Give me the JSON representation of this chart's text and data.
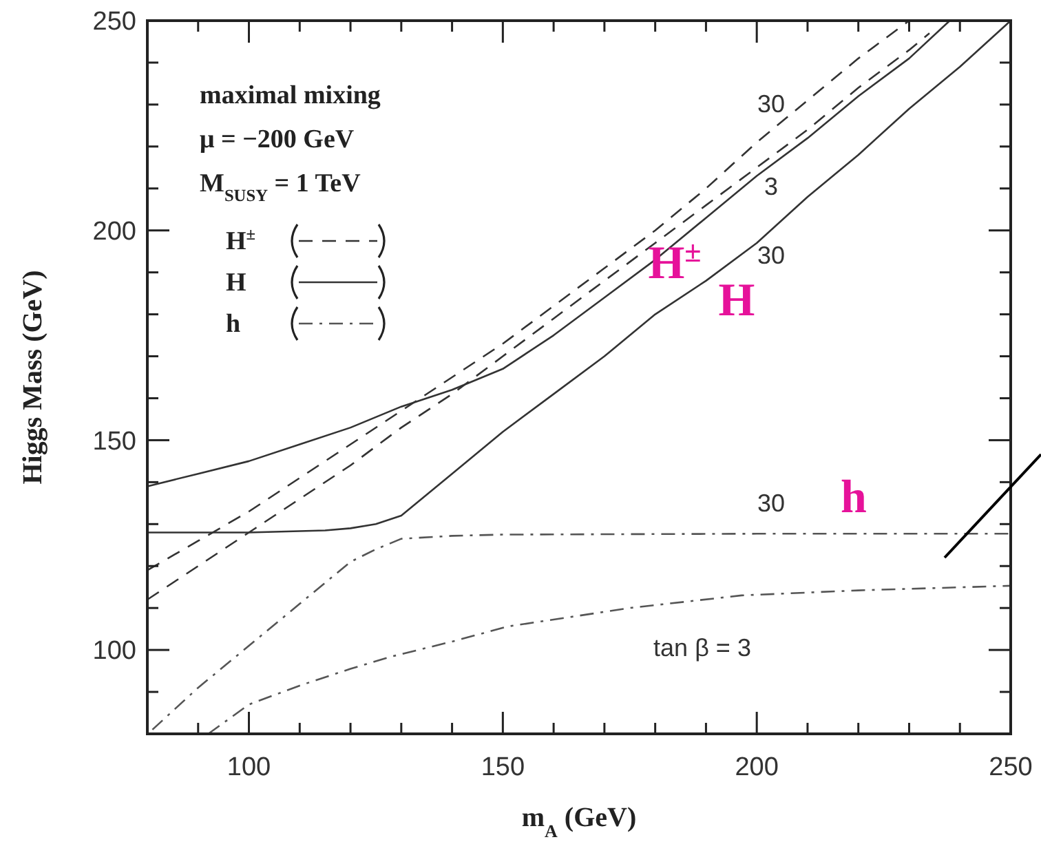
{
  "chart_data": {
    "type": "line",
    "xlabel": "m$_{A}$ (GeV)",
    "ylabel": "Higgs Mass (GeV)",
    "xlim": [
      80,
      250
    ],
    "ylim": [
      80,
      250
    ],
    "xticks": [
      {
        "value": 90,
        "label": null
      },
      100,
      {
        "value": 110,
        "label": null
      },
      {
        "value": 120,
        "label": null
      },
      {
        "value": 130,
        "label": null
      },
      {
        "value": 140,
        "label": null
      },
      150,
      {
        "value": 160,
        "label": null
      },
      {
        "value": 170,
        "label": null
      },
      {
        "value": 180,
        "label": null
      },
      {
        "value": 190,
        "label": null
      },
      200,
      {
        "value": 210,
        "label": null
      },
      {
        "value": 220,
        "label": null
      },
      {
        "value": 230,
        "label": null
      },
      {
        "value": 240,
        "label": null
      },
      250
    ],
    "yticks": [
      {
        "value": 90,
        "label": null
      },
      100,
      {
        "value": 110,
        "label": null
      },
      {
        "value": 120,
        "label": null
      },
      {
        "value": 130,
        "label": null
      },
      {
        "value": 140,
        "label": null
      },
      150,
      {
        "value": 160,
        "label": null
      },
      {
        "value": 170,
        "label": null
      },
      {
        "value": 180,
        "label": null
      },
      {
        "value": 190,
        "label": null
      },
      200,
      {
        "value": 210,
        "label": null
      },
      {
        "value": 220,
        "label": null
      },
      {
        "value": 230,
        "label": null
      },
      {
        "value": 240,
        "label": null
      },
      250
    ],
    "grid": false,
    "legend": "top left",
    "marker": "none",
    "series": [
      {
        "name": "H$^{±}$",
        "color": "#333333",
        "line_style": "dashed",
        "x": [
          80,
          90,
          100,
          110,
          120,
          130,
          140,
          150,
          160,
          170,
          180,
          190,
          200,
          210,
          220,
          230
        ],
        "values": [
          119,
          126,
          133,
          141,
          149,
          157,
          165,
          173,
          182,
          191,
          200,
          210,
          221,
          231,
          241,
          250
        ]
      },
      {
        "color": "#333333",
        "line_style": "dashed",
        "x": [
          80,
          90,
          100,
          110,
          120,
          130,
          140,
          150,
          160,
          170,
          180,
          190,
          200,
          210,
          220,
          230,
          234
        ],
        "values": [
          112,
          120,
          128,
          136,
          144,
          153,
          161,
          170,
          179,
          188,
          197,
          206,
          215,
          224,
          234,
          243,
          247
        ]
      },
      {
        "name": "H",
        "color": "#333333",
        "line_style": "solid",
        "x": [
          80,
          90,
          100,
          110,
          120,
          130,
          140,
          150,
          160,
          170,
          180,
          190,
          200,
          210,
          220,
          230,
          238
        ],
        "values": [
          139,
          142,
          145,
          149,
          153,
          158,
          162,
          167,
          175,
          184,
          193,
          203,
          213,
          222,
          232,
          241,
          250
        ]
      },
      {
        "color": "#333333",
        "line_style": "solid",
        "x": [
          80,
          100,
          115,
          120,
          125,
          130,
          140,
          150,
          160,
          170,
          180,
          190,
          200,
          210,
          220,
          230,
          240,
          250
        ],
        "values": [
          128,
          128,
          128.5,
          129,
          130,
          132,
          142,
          152,
          161,
          170,
          180,
          188,
          197,
          208,
          218,
          229,
          239,
          250
        ]
      },
      {
        "name": "h",
        "color": "#555555",
        "line_style": "dashdot",
        "x": [
          81,
          90,
          100,
          110,
          115,
          120,
          125,
          130,
          140,
          150,
          175,
          200,
          225,
          250
        ],
        "values": [
          81,
          91,
          101,
          111,
          116,
          121,
          124,
          126.5,
          127.2,
          127.5,
          127.6,
          127.7,
          127.7,
          127.7
        ]
      },
      {
        "color": "#555555",
        "line_style": "dashdot",
        "x": [
          92,
          100,
          110,
          120,
          128,
          140,
          151,
          175,
          197,
          220,
          242,
          250
        ],
        "values": [
          80,
          87,
          91.5,
          95.5,
          98.4,
          102,
          105.6,
          110,
          113,
          114.2,
          115,
          115.3
        ]
      }
    ],
    "annotations": [
      "maximal mixing",
      "μ = −200 GeV",
      "M$_{SUSY}$ = 1 TeV",
      "30",
      "H$^{±}$",
      "3",
      "30",
      "H",
      "30",
      "h",
      "tan β = 3"
    ]
  }
}
